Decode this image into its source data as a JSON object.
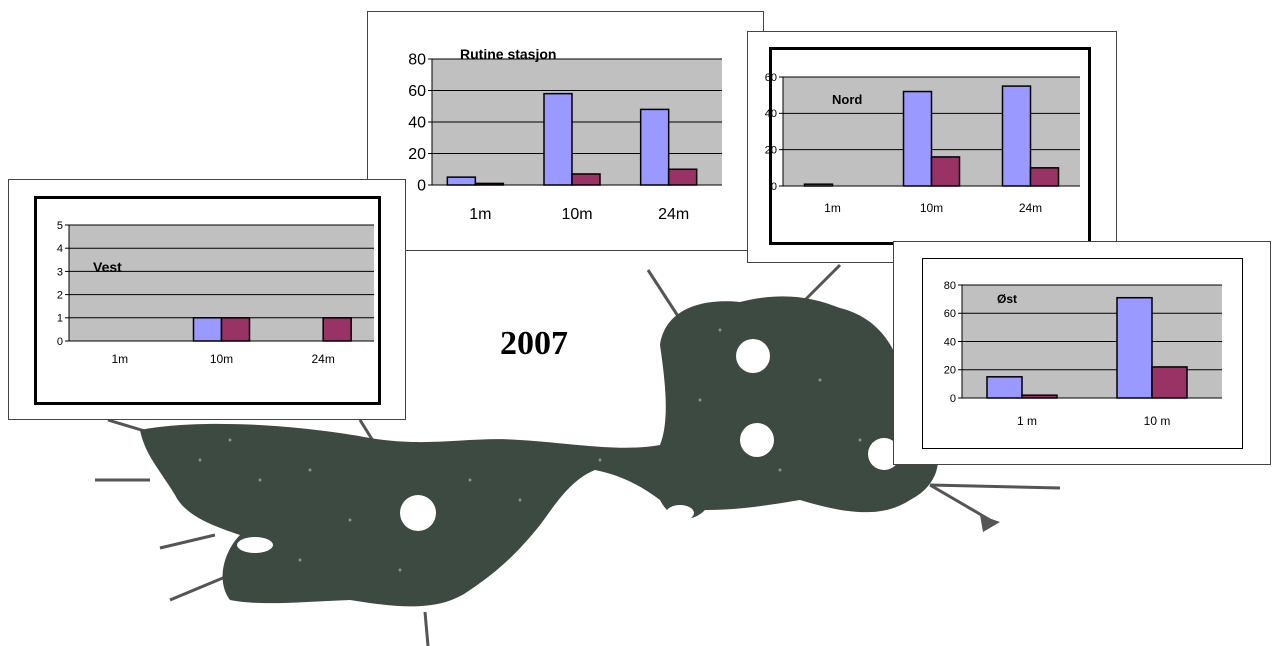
{
  "figure": {
    "year_label": "2007"
  },
  "colors": {
    "series_a": "#9999ff",
    "series_b": "#993366",
    "plot_bg": "#c0c0c0",
    "lake": "#3d4a41"
  },
  "chart_data": [
    {
      "id": "vest",
      "type": "bar",
      "title": "Vest",
      "categories": [
        "1m",
        "10m",
        "24m"
      ],
      "series": [
        {
          "values": [
            0,
            1,
            0
          ]
        },
        {
          "values": [
            0,
            1,
            1
          ]
        }
      ],
      "ylim": [
        0,
        5
      ],
      "yticks": [
        0,
        1,
        2,
        3,
        4,
        5
      ],
      "grid": true
    },
    {
      "id": "rutine",
      "type": "bar",
      "title": "Rutine stasjon",
      "categories": [
        "1m",
        "10m",
        "24m"
      ],
      "series": [
        {
          "values": [
            5,
            58,
            48
          ]
        },
        {
          "values": [
            1,
            7,
            10
          ]
        }
      ],
      "ylim": [
        0,
        80
      ],
      "yticks": [
        0,
        20,
        40,
        60,
        80
      ],
      "grid": true
    },
    {
      "id": "nord",
      "type": "bar",
      "title": "Nord",
      "categories": [
        "1m",
        "10m",
        "24m"
      ],
      "series": [
        {
          "values": [
            1,
            52,
            55
          ]
        },
        {
          "values": [
            0,
            16,
            10
          ]
        }
      ],
      "ylim": [
        0,
        60
      ],
      "yticks": [
        0,
        20,
        40,
        60
      ],
      "grid": true
    },
    {
      "id": "ost",
      "type": "bar",
      "title": "Øst",
      "categories": [
        "1 m",
        "10 m"
      ],
      "series": [
        {
          "values": [
            15,
            71
          ]
        },
        {
          "values": [
            2,
            22
          ]
        }
      ],
      "ylim": [
        0,
        80
      ],
      "yticks": [
        0,
        20,
        40,
        60,
        80
      ],
      "grid": true
    }
  ]
}
